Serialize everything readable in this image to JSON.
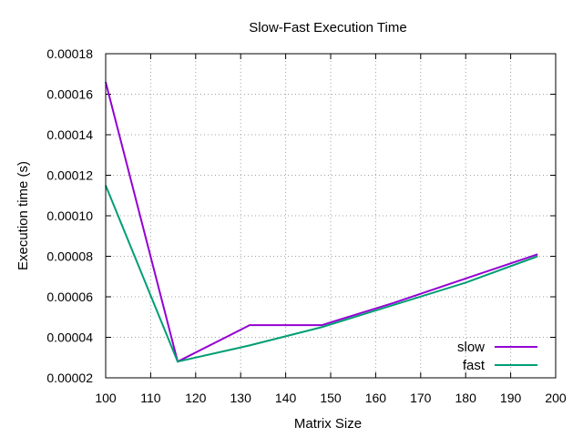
{
  "chart_data": {
    "type": "line",
    "title": "Slow-Fast Execution Time",
    "xlabel": "Matrix Size",
    "ylabel": "Execution time (s)",
    "xlim": [
      100,
      200
    ],
    "ylim": [
      2e-05,
      0.00018
    ],
    "x_ticks": [
      "100",
      "110",
      "120",
      "130",
      "140",
      "150",
      "160",
      "170",
      "180",
      "190",
      "200"
    ],
    "y_ticks": [
      "0.00002",
      "0.00004",
      "0.00006",
      "0.00008",
      "0.00010",
      "0.00012",
      "0.00014",
      "0.00016",
      "0.00018"
    ],
    "grid": true,
    "legend_position": "bottom-right",
    "series": [
      {
        "name": "slow",
        "color": "#9400d3",
        "x": [
          100,
          116,
          132,
          148,
          164,
          180,
          196
        ],
        "y": [
          0.000166,
          2.8e-05,
          4.6e-05,
          4.6e-05,
          5.7e-05,
          6.9e-05,
          8.1e-05
        ]
      },
      {
        "name": "fast",
        "color": "#009e73",
        "x": [
          100,
          116,
          132,
          148,
          164,
          180,
          196
        ],
        "y": [
          0.000115,
          2.8e-05,
          3.6e-05,
          4.5e-05,
          5.6e-05,
          6.7e-05,
          8e-05
        ]
      }
    ]
  }
}
